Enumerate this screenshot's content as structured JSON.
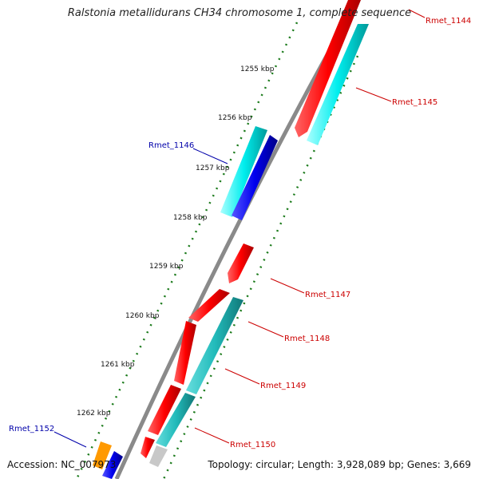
{
  "title": "Ralstonia metallidurans CH34 chromosome 1, complete sequence",
  "footer": {
    "accession": "Accession: NC_007973",
    "summary": "Topology: circular; Length: 3,928,089 bp; Genes: 3,669"
  },
  "colors": {
    "backbone": "#8a8a8a",
    "tick": "#1a7a1a",
    "forward_gene": "#ff0000",
    "reverse_cds": "#00ffff",
    "reverse_gene_blue": "#0000ee",
    "orange_gene": "#ff9900",
    "grey_gene": "#c0c0c0",
    "label_red": "#cc0000",
    "label_blue": "#0000aa"
  },
  "ticks": [
    "1255 kbp",
    "1256 kbp",
    "1257 kbp",
    "1258 kbp",
    "1259 kbp",
    "1260 kbp",
    "1261 kbp",
    "1262 kbp"
  ],
  "genes": [
    {
      "label": "Rmet_1144",
      "color": "#cc0000"
    },
    {
      "label": "Rmet_1145",
      "color": "#cc0000"
    },
    {
      "label": "Rmet_1146",
      "color": "#0000aa"
    },
    {
      "label": "Rmet_1147",
      "color": "#cc0000"
    },
    {
      "label": "Rmet_1148",
      "color": "#cc0000"
    },
    {
      "label": "Rmet_1149",
      "color": "#cc0000"
    },
    {
      "label": "Rmet_1150",
      "color": "#cc0000"
    },
    {
      "label": "Rmet_1152",
      "color": "#0000aa"
    }
  ]
}
